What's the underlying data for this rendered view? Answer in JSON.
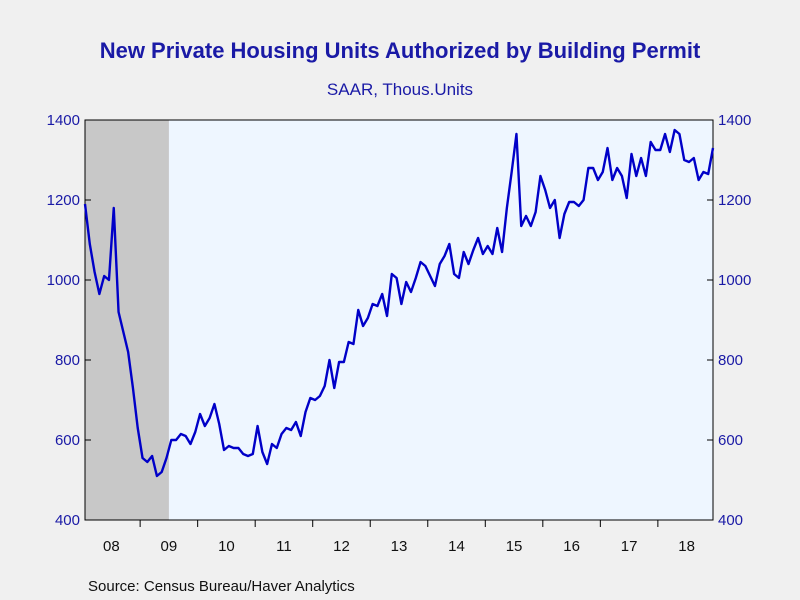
{
  "title": "New Private Housing Units Authorized by Building Permit",
  "subtitle": "SAAR, Thous.Units",
  "source": "Source:  Census Bureau/Haver Analytics",
  "colors": {
    "line": "#0000c8",
    "text": "#1a1aa6",
    "plot_bg": "#eef6ff",
    "recession": "#c8c8c8"
  },
  "chart_data": {
    "type": "line",
    "start": "2008-01",
    "frequency": "monthly",
    "y_ticks": [
      "400",
      "600",
      "800",
      "1000",
      "1200",
      "1400"
    ],
    "ylim": [
      400,
      1400
    ],
    "x_tick_labels": [
      "08",
      "09",
      "10",
      "11",
      "12",
      "13",
      "14",
      "15",
      "16",
      "17",
      "18"
    ],
    "recession_shading": {
      "start": "2008-01",
      "end": "2009-06"
    },
    "series": [
      {
        "values": [
          1190,
          1090,
          1020,
          965,
          1010,
          1000,
          1180,
          920,
          870,
          820,
          730,
          630,
          555,
          545,
          560,
          510,
          520,
          555,
          600,
          600,
          615,
          610,
          590,
          620,
          665,
          635,
          655,
          690,
          640,
          575,
          585,
          580,
          580,
          565,
          560,
          565,
          635,
          570,
          540,
          590,
          580,
          615,
          630,
          625,
          645,
          610,
          670,
          705,
          700,
          710,
          735,
          800,
          730,
          795,
          795,
          845,
          840,
          925,
          885,
          905,
          940,
          935,
          965,
          910,
          1015,
          1005,
          940,
          995,
          970,
          1005,
          1045,
          1035,
          1010,
          985,
          1040,
          1060,
          1090,
          1015,
          1005,
          1070,
          1040,
          1075,
          1105,
          1065,
          1085,
          1065,
          1130,
          1070,
          1180,
          1270,
          1365,
          1135,
          1160,
          1135,
          1170,
          1260,
          1225,
          1180,
          1200,
          1105,
          1165,
          1195,
          1195,
          1185,
          1200,
          1280,
          1280,
          1250,
          1270,
          1330,
          1250,
          1280,
          1260,
          1205,
          1315,
          1260,
          1305,
          1260,
          1345,
          1325,
          1325,
          1365,
          1320,
          1375,
          1365,
          1300,
          1295,
          1305,
          1250,
          1270,
          1265,
          1330
        ]
      }
    ]
  }
}
